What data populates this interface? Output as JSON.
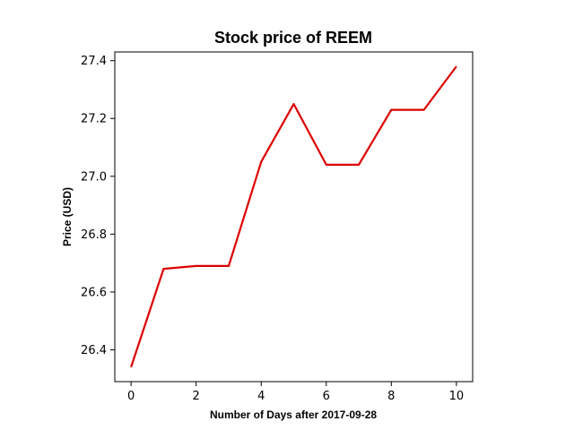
{
  "chart_data": {
    "type": "line",
    "title": "Stock price of REEM",
    "xlabel": "Number of Days after 2017-09-28",
    "ylabel": "Price (USD)",
    "xlim": [
      -0.5,
      10.5
    ],
    "ylim": [
      26.29,
      27.43
    ],
    "xticks": [
      0,
      2,
      4,
      6,
      8,
      10
    ],
    "xtick_labels": [
      "0",
      "2",
      "4",
      "6",
      "8",
      "10"
    ],
    "yticks": [
      26.4,
      26.6,
      26.8,
      27.0,
      27.2,
      27.4
    ],
    "ytick_labels": [
      "26.4",
      "26.6",
      "26.8",
      "27.0",
      "27.2",
      "27.4"
    ],
    "grid": false,
    "series": [
      {
        "color": "#dd0000",
        "x": [
          0,
          1,
          2,
          3,
          4,
          5,
          6,
          7,
          8,
          9,
          10
        ],
        "y": [
          26.34,
          26.68,
          26.69,
          26.69,
          27.05,
          27.25,
          27.04,
          27.04,
          27.23,
          27.23,
          27.38
        ]
      }
    ]
  }
}
